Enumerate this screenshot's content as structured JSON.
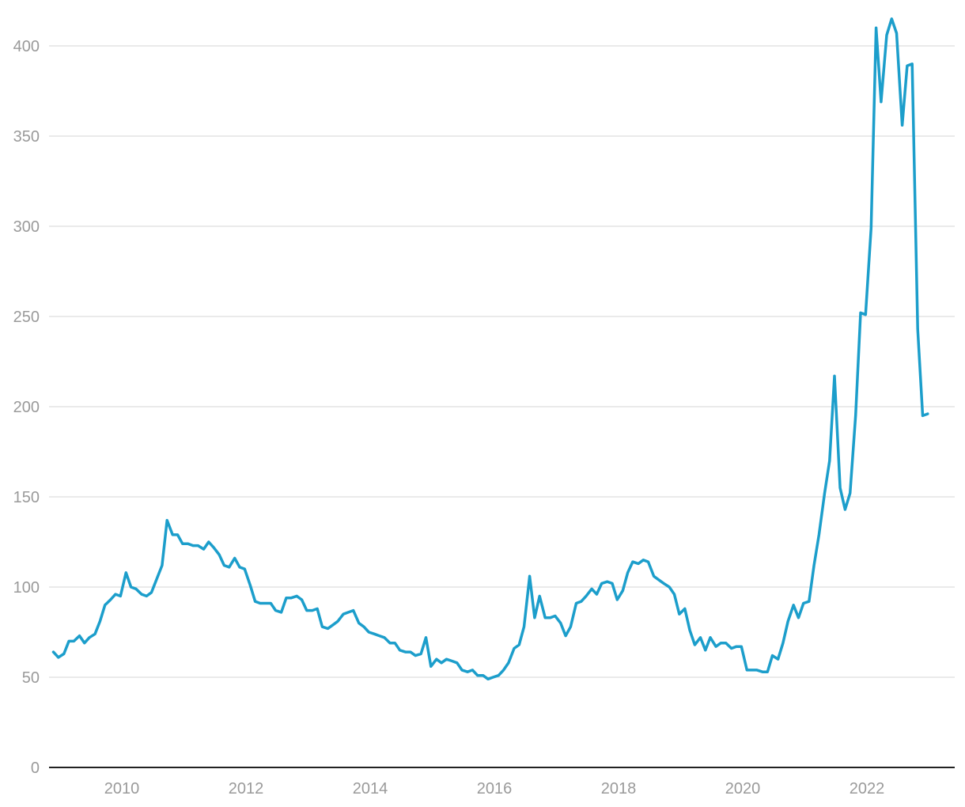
{
  "chart_data": {
    "type": "line",
    "title": "",
    "xlabel": "",
    "ylabel": "",
    "grid": "horizontal",
    "colors": {
      "series": "#1c9ecb",
      "grid": "#e3e3e3",
      "axis": "#222222",
      "tick_text": "#9a9a9a"
    },
    "xlim": [
      2008.8,
      2023.4
    ],
    "ylim": [
      0,
      420
    ],
    "xticks": [
      2010,
      2012,
      2014,
      2016,
      2018,
      2020,
      2022
    ],
    "xtick_labels": [
      "2010",
      "2012",
      "2014",
      "2016",
      "2018",
      "2020",
      "2022"
    ],
    "yticks": [
      0,
      50,
      100,
      150,
      200,
      250,
      300,
      350,
      400
    ],
    "ytick_labels": [
      "0",
      "50",
      "100",
      "150",
      "200",
      "250",
      "300",
      "350",
      "400"
    ],
    "series": [
      {
        "points": [
          [
            2009.0,
            64
          ],
          [
            2009.08,
            61
          ],
          [
            2009.17,
            63
          ],
          [
            2009.25,
            70
          ],
          [
            2009.33,
            70
          ],
          [
            2009.42,
            73
          ],
          [
            2009.5,
            69
          ],
          [
            2009.58,
            72
          ],
          [
            2009.67,
            74
          ],
          [
            2009.75,
            81
          ],
          [
            2009.83,
            90
          ],
          [
            2009.92,
            93
          ],
          [
            2010.0,
            96
          ],
          [
            2010.08,
            95
          ],
          [
            2010.17,
            108
          ],
          [
            2010.25,
            100
          ],
          [
            2010.33,
            99
          ],
          [
            2010.42,
            96
          ],
          [
            2010.5,
            95
          ],
          [
            2010.58,
            97
          ],
          [
            2010.67,
            105
          ],
          [
            2010.75,
            112
          ],
          [
            2010.83,
            137
          ],
          [
            2010.92,
            129
          ],
          [
            2011.0,
            129
          ],
          [
            2011.08,
            124
          ],
          [
            2011.17,
            124
          ],
          [
            2011.25,
            123
          ],
          [
            2011.33,
            123
          ],
          [
            2011.42,
            121
          ],
          [
            2011.5,
            125
          ],
          [
            2011.58,
            122
          ],
          [
            2011.67,
            118
          ],
          [
            2011.75,
            112
          ],
          [
            2011.83,
            111
          ],
          [
            2011.92,
            116
          ],
          [
            2012.0,
            111
          ],
          [
            2012.08,
            110
          ],
          [
            2012.17,
            101
          ],
          [
            2012.25,
            92
          ],
          [
            2012.33,
            91
          ],
          [
            2012.42,
            91
          ],
          [
            2012.5,
            91
          ],
          [
            2012.58,
            87
          ],
          [
            2012.67,
            86
          ],
          [
            2012.75,
            94
          ],
          [
            2012.83,
            94
          ],
          [
            2012.92,
            95
          ],
          [
            2013.0,
            93
          ],
          [
            2013.08,
            87
          ],
          [
            2013.17,
            87
          ],
          [
            2013.25,
            88
          ],
          [
            2013.33,
            78
          ],
          [
            2013.42,
            77
          ],
          [
            2013.5,
            79
          ],
          [
            2013.58,
            81
          ],
          [
            2013.67,
            85
          ],
          [
            2013.75,
            86
          ],
          [
            2013.83,
            87
          ],
          [
            2013.92,
            80
          ],
          [
            2014.0,
            78
          ],
          [
            2014.08,
            75
          ],
          [
            2014.17,
            74
          ],
          [
            2014.25,
            73
          ],
          [
            2014.33,
            72
          ],
          [
            2014.42,
            69
          ],
          [
            2014.5,
            69
          ],
          [
            2014.58,
            65
          ],
          [
            2014.67,
            64
          ],
          [
            2014.75,
            64
          ],
          [
            2014.83,
            62
          ],
          [
            2014.92,
            63
          ],
          [
            2015.0,
            72
          ],
          [
            2015.08,
            56
          ],
          [
            2015.17,
            60
          ],
          [
            2015.25,
            58
          ],
          [
            2015.33,
            60
          ],
          [
            2015.42,
            59
          ],
          [
            2015.5,
            58
          ],
          [
            2015.58,
            54
          ],
          [
            2015.67,
            53
          ],
          [
            2015.75,
            54
          ],
          [
            2015.83,
            51
          ],
          [
            2015.92,
            51
          ],
          [
            2016.0,
            49
          ],
          [
            2016.08,
            50
          ],
          [
            2016.17,
            51
          ],
          [
            2016.25,
            54
          ],
          [
            2016.33,
            58
          ],
          [
            2016.42,
            66
          ],
          [
            2016.5,
            68
          ],
          [
            2016.58,
            78
          ],
          [
            2016.67,
            106
          ],
          [
            2016.75,
            83
          ],
          [
            2016.83,
            95
          ],
          [
            2016.92,
            83
          ],
          [
            2017.0,
            83
          ],
          [
            2017.08,
            84
          ],
          [
            2017.17,
            80
          ],
          [
            2017.25,
            73
          ],
          [
            2017.33,
            78
          ],
          [
            2017.42,
            91
          ],
          [
            2017.5,
            92
          ],
          [
            2017.58,
            95
          ],
          [
            2017.67,
            99
          ],
          [
            2017.75,
            96
          ],
          [
            2017.83,
            102
          ],
          [
            2017.92,
            103
          ],
          [
            2018.0,
            102
          ],
          [
            2018.08,
            93
          ],
          [
            2018.17,
            98
          ],
          [
            2018.25,
            108
          ],
          [
            2018.33,
            114
          ],
          [
            2018.42,
            113
          ],
          [
            2018.5,
            115
          ],
          [
            2018.58,
            114
          ],
          [
            2018.67,
            106
          ],
          [
            2018.75,
            104
          ],
          [
            2018.83,
            102
          ],
          [
            2018.92,
            100
          ],
          [
            2019.0,
            96
          ],
          [
            2019.08,
            85
          ],
          [
            2019.17,
            88
          ],
          [
            2019.25,
            76
          ],
          [
            2019.33,
            68
          ],
          [
            2019.42,
            72
          ],
          [
            2019.5,
            65
          ],
          [
            2019.58,
            72
          ],
          [
            2019.67,
            67
          ],
          [
            2019.75,
            69
          ],
          [
            2019.83,
            69
          ],
          [
            2019.92,
            66
          ],
          [
            2020.0,
            67
          ],
          [
            2020.08,
            67
          ],
          [
            2020.17,
            54
          ],
          [
            2020.25,
            54
          ],
          [
            2020.33,
            54
          ],
          [
            2020.42,
            53
          ],
          [
            2020.5,
            53
          ],
          [
            2020.58,
            62
          ],
          [
            2020.67,
            60
          ],
          [
            2020.75,
            69
          ],
          [
            2020.83,
            81
          ],
          [
            2020.92,
            90
          ],
          [
            2021.0,
            83
          ],
          [
            2021.08,
            91
          ],
          [
            2021.17,
            92
          ],
          [
            2021.25,
            112
          ],
          [
            2021.33,
            129
          ],
          [
            2021.42,
            152
          ],
          [
            2021.5,
            170
          ],
          [
            2021.58,
            217
          ],
          [
            2021.67,
            155
          ],
          [
            2021.75,
            143
          ],
          [
            2021.83,
            152
          ],
          [
            2021.92,
            195
          ],
          [
            2022.0,
            252
          ],
          [
            2022.08,
            251
          ],
          [
            2022.17,
            299
          ],
          [
            2022.25,
            410
          ],
          [
            2022.33,
            369
          ],
          [
            2022.42,
            406
          ],
          [
            2022.5,
            415
          ],
          [
            2022.58,
            407
          ],
          [
            2022.67,
            356
          ],
          [
            2022.75,
            389
          ],
          [
            2022.83,
            390
          ],
          [
            2022.92,
            243
          ],
          [
            2023.0,
            195
          ],
          [
            2023.08,
            196
          ]
        ]
      }
    ]
  }
}
